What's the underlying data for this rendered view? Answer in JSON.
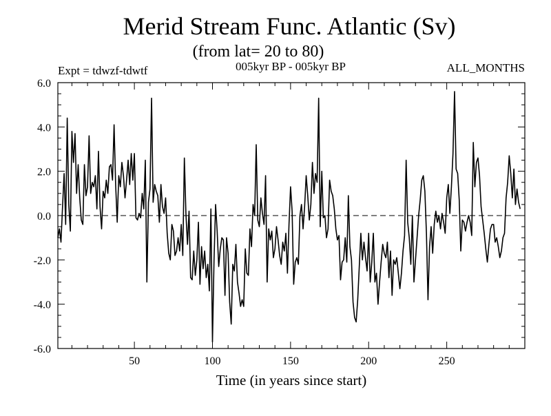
{
  "chart_data": {
    "type": "line",
    "title": "Merid Stream Func. Atlantic (Sv)",
    "subtitle": "(from lat= 20 to 80)",
    "header_left": "Expt = tdwzf-tdwtf",
    "header_center": "005kyr BP - 005kyr BP",
    "header_right": "ALL_MONTHS",
    "xlabel": "Time (in years since start)",
    "ylabel": "",
    "xlim": [
      1,
      300
    ],
    "ylim": [
      -6,
      6
    ],
    "xticks": [
      50,
      100,
      150,
      200,
      250
    ],
    "xtick_labels": [
      "50",
      "100",
      "150",
      "200",
      "250"
    ],
    "yticks": [
      -6,
      -4,
      -2,
      0,
      2,
      4,
      6
    ],
    "ytick_labels": [
      "-6.0",
      "-4.0",
      "-2.0",
      "0.0",
      "2.0",
      "4.0",
      "6.0"
    ],
    "zero_line": "dashed",
    "grid": false,
    "series": [
      {
        "values": [
          -1.0,
          -0.6,
          -1.2,
          0.4,
          1.9,
          -0.4,
          4.4,
          0.5,
          -0.7,
          3.8,
          2.4,
          3.7,
          1.0,
          2.3,
          0.8,
          -0.2,
          -0.4,
          2.3,
          0.9,
          1.3,
          3.6,
          1.0,
          1.5,
          1.3,
          1.8,
          0.3,
          2.9,
          0.4,
          -0.6,
          1.1,
          0.8,
          1.6,
          1.0,
          2.2,
          2.3,
          1.6,
          4.1,
          1.4,
          -0.3,
          1.8,
          1.3,
          2.4,
          1.8,
          0.8,
          1.6,
          2.5,
          1.4,
          2.8,
          1.6,
          2.8,
          -0.1,
          -0.2,
          0.1,
          -0.1,
          1.0,
          0.3,
          2.5,
          -3.0,
          0.6,
          1.2,
          5.3,
          0.6,
          1.4,
          1.1,
          0.9,
          -0.3,
          1.4,
          0.4,
          0.1,
          0.8,
          -0.8,
          -1.7,
          -2.0,
          -0.4,
          -0.7,
          -1.8,
          -1.6,
          -1.0,
          -1.6,
          -0.4,
          -1.8,
          2.6,
          0.1,
          -1.3,
          0.2,
          -2.8,
          -2.9,
          -1.6,
          -2.7,
          -2.0,
          -0.3,
          -3.1,
          -1.4,
          -2.4,
          -1.6,
          -2.8,
          -2.2,
          -3.4,
          0.3,
          -5.7,
          -2.0,
          0.5,
          -0.7,
          -2.3,
          -1.5,
          -1.0,
          -1.1,
          -3.6,
          -1.0,
          -1.7,
          -3.9,
          -4.9,
          -2.2,
          -2.5,
          -1.3,
          -3.0,
          -3.5,
          -4.1,
          -3.8,
          -4.1,
          -1.5,
          -2.6,
          -2.7,
          -0.6,
          -1.4,
          0.5,
          0.0,
          3.2,
          -0.2,
          -0.5,
          0.8,
          0.1,
          -0.4,
          1.8,
          -3.0,
          -0.6,
          -1.1,
          -0.7,
          -1.9,
          -1.5,
          -0.5,
          -1.1,
          -1.8,
          -2.2,
          -1.2,
          -1.6,
          -0.8,
          -2.6,
          -0.4,
          1.3,
          0.2,
          -3.1,
          -2.1,
          -1.9,
          -2.2,
          0.0,
          0.5,
          -0.6,
          0.4,
          1.8,
          0.9,
          -0.2,
          0.5,
          2.4,
          1.0,
          1.9,
          1.5,
          5.3,
          -0.5,
          2.0,
          -0.1,
          0.0,
          -1.0,
          -0.6,
          1.6,
          1.1,
          0.9,
          0.3,
          -0.6,
          -1.1,
          -0.9,
          -2.9,
          -2.1,
          -2.0,
          -1.0,
          -2.1,
          0.9,
          -1.4,
          -2.0,
          -3.9,
          -4.6,
          -4.8,
          -3.8,
          -2.3,
          -0.8,
          -2.0,
          -1.2,
          -1.9,
          -2.5,
          -0.8,
          -3.0,
          -2.1,
          -0.8,
          -3.0,
          -2.6,
          -4.0,
          -3.0,
          -2.1,
          -1.3,
          -1.7,
          -1.9,
          -1.2,
          -2.8,
          -1.6,
          -3.6,
          -2.0,
          -2.2,
          -1.9,
          -2.6,
          -3.3,
          -2.6,
          -1.6,
          -0.9,
          2.5,
          -0.3,
          -1.0,
          -2.2,
          0.0,
          -3.0,
          -2.0,
          -1.0,
          0.0,
          0.7,
          1.6,
          1.8,
          1.1,
          -0.8,
          -3.8,
          -1.4,
          -0.5,
          -1.7,
          -0.4,
          0.2,
          -0.3,
          0.0,
          -0.6,
          0.1,
          -0.3,
          -0.8,
          0.8,
          1.4,
          0.1,
          1.3,
          2.8,
          5.6,
          2.1,
          1.9,
          0.7,
          -1.6,
          -0.2,
          -0.3,
          -0.7,
          -0.3,
          0.0,
          -0.3,
          -0.9,
          3.3,
          1.3,
          2.4,
          2.6,
          1.8,
          0.4,
          -0.2,
          -0.8,
          -1.5,
          -2.1,
          -1.3,
          -0.6,
          -0.4,
          -0.4,
          -1.2,
          -1.0,
          -1.4,
          -1.9,
          -1.6,
          -1.0,
          -0.8,
          0.8,
          1.5,
          2.7,
          1.9,
          0.8,
          2.1,
          0.5,
          1.2,
          0.6,
          0.3
        ]
      }
    ]
  }
}
